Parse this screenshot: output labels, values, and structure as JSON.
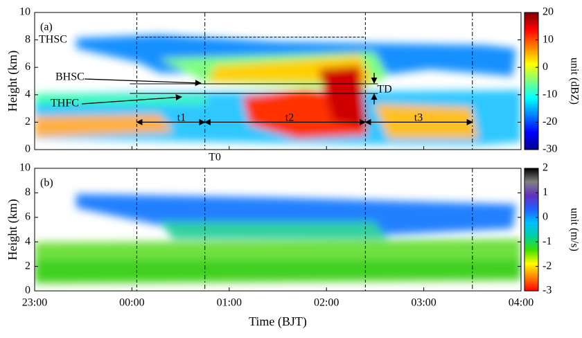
{
  "chart_data": [
    {
      "type": "heatmap",
      "panel_label": "(a)",
      "ylabel": "Height (km)",
      "ylim": [
        0,
        10
      ],
      "yticks": [
        0,
        2,
        4,
        6,
        8,
        10
      ],
      "colorbar": {
        "label": "unit (dBZ)",
        "lim": [
          -30,
          20
        ],
        "ticks": [
          -30,
          -20,
          -10,
          0,
          10,
          20
        ],
        "colormap": [
          "#00008f",
          "#0000ff",
          "#0080ff",
          "#00ffff",
          "#80ff80",
          "#ffff00",
          "#ff8000",
          "#ff0000",
          "#800000"
        ]
      },
      "hlines": [
        8.2,
        4.8,
        4.1
      ],
      "annotations": [
        "THSC",
        "BHSC",
        "THFC",
        "t1",
        "t2",
        "t3",
        "TD",
        "T0"
      ]
    },
    {
      "type": "heatmap",
      "panel_label": "(b)",
      "ylabel": "Height (km)",
      "ylim": [
        0,
        10
      ],
      "yticks": [
        0,
        2,
        4,
        6,
        8,
        10
      ],
      "xlabel": "Time (BJT)",
      "categories": [
        "23:00",
        "00:00",
        "01:00",
        "02:00",
        "03:00",
        "04:00"
      ],
      "vlines": [
        "00:03",
        "00:45",
        "02:24",
        "03:30"
      ],
      "colorbar": {
        "label": "unit (m/s)",
        "lim": [
          -3,
          2
        ],
        "ticks": [
          -3,
          -2,
          -1,
          0,
          1,
          2
        ],
        "colormap": [
          "#ff0000",
          "#ff8000",
          "#ffff00",
          "#40e000",
          "#00d0a0",
          "#00c0ff",
          "#2060ff",
          "#6030c0",
          "#808080",
          "#000000"
        ]
      }
    }
  ]
}
